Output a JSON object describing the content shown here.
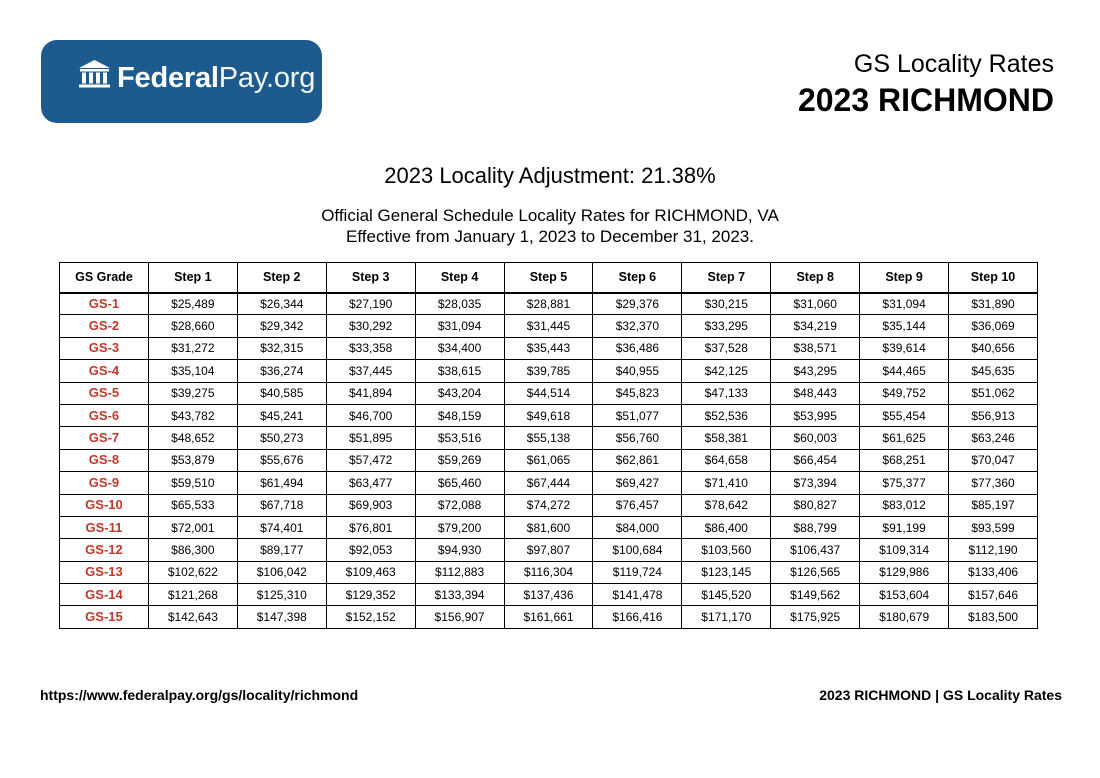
{
  "logo": {
    "text_bold": "Federal",
    "text_light": "Pay.org"
  },
  "header": {
    "subtitle": "GS Locality Rates",
    "title": "2023 RICHMOND"
  },
  "adjustment": "2023 Locality Adjustment: 21.38%",
  "description": {
    "line1": "Official General Schedule Locality Rates for RICHMOND, VA",
    "line2": "Effective from January 1, 2023 to December 31, 2023."
  },
  "table": {
    "headers": [
      "GS Grade",
      "Step 1",
      "Step 2",
      "Step 3",
      "Step 4",
      "Step 5",
      "Step 6",
      "Step 7",
      "Step 8",
      "Step 9",
      "Step 10"
    ],
    "rows": [
      [
        "GS-1",
        "$25,489",
        "$26,344",
        "$27,190",
        "$28,035",
        "$28,881",
        "$29,376",
        "$30,215",
        "$31,060",
        "$31,094",
        "$31,890"
      ],
      [
        "GS-2",
        "$28,660",
        "$29,342",
        "$30,292",
        "$31,094",
        "$31,445",
        "$32,370",
        "$33,295",
        "$34,219",
        "$35,144",
        "$36,069"
      ],
      [
        "GS-3",
        "$31,272",
        "$32,315",
        "$33,358",
        "$34,400",
        "$35,443",
        "$36,486",
        "$37,528",
        "$38,571",
        "$39,614",
        "$40,656"
      ],
      [
        "GS-4",
        "$35,104",
        "$36,274",
        "$37,445",
        "$38,615",
        "$39,785",
        "$40,955",
        "$42,125",
        "$43,295",
        "$44,465",
        "$45,635"
      ],
      [
        "GS-5",
        "$39,275",
        "$40,585",
        "$41,894",
        "$43,204",
        "$44,514",
        "$45,823",
        "$47,133",
        "$48,443",
        "$49,752",
        "$51,062"
      ],
      [
        "GS-6",
        "$43,782",
        "$45,241",
        "$46,700",
        "$48,159",
        "$49,618",
        "$51,077",
        "$52,536",
        "$53,995",
        "$55,454",
        "$56,913"
      ],
      [
        "GS-7",
        "$48,652",
        "$50,273",
        "$51,895",
        "$53,516",
        "$55,138",
        "$56,760",
        "$58,381",
        "$60,003",
        "$61,625",
        "$63,246"
      ],
      [
        "GS-8",
        "$53,879",
        "$55,676",
        "$57,472",
        "$59,269",
        "$61,065",
        "$62,861",
        "$64,658",
        "$66,454",
        "$68,251",
        "$70,047"
      ],
      [
        "GS-9",
        "$59,510",
        "$61,494",
        "$63,477",
        "$65,460",
        "$67,444",
        "$69,427",
        "$71,410",
        "$73,394",
        "$75,377",
        "$77,360"
      ],
      [
        "GS-10",
        "$65,533",
        "$67,718",
        "$69,903",
        "$72,088",
        "$74,272",
        "$76,457",
        "$78,642",
        "$80,827",
        "$83,012",
        "$85,197"
      ],
      [
        "GS-11",
        "$72,001",
        "$74,401",
        "$76,801",
        "$79,200",
        "$81,600",
        "$84,000",
        "$86,400",
        "$88,799",
        "$91,199",
        "$93,599"
      ],
      [
        "GS-12",
        "$86,300",
        "$89,177",
        "$92,053",
        "$94,930",
        "$97,807",
        "$100,684",
        "$103,560",
        "$106,437",
        "$109,314",
        "$112,190"
      ],
      [
        "GS-13",
        "$102,622",
        "$106,042",
        "$109,463",
        "$112,883",
        "$116,304",
        "$119,724",
        "$123,145",
        "$126,565",
        "$129,986",
        "$133,406"
      ],
      [
        "GS-14",
        "$121,268",
        "$125,310",
        "$129,352",
        "$133,394",
        "$137,436",
        "$141,478",
        "$145,520",
        "$149,562",
        "$153,604",
        "$157,646"
      ],
      [
        "GS-15",
        "$142,643",
        "$147,398",
        "$152,152",
        "$156,907",
        "$161,661",
        "$166,416",
        "$171,170",
        "$175,925",
        "$180,679",
        "$183,500"
      ]
    ]
  },
  "footer": {
    "url": "https://www.federalpay.org/gs/locality/richmond",
    "label": "2023 RICHMOND | GS Locality Rates"
  },
  "colors": {
    "brand_blue": "#1d5a8e",
    "grade_red": "#c0392b"
  }
}
